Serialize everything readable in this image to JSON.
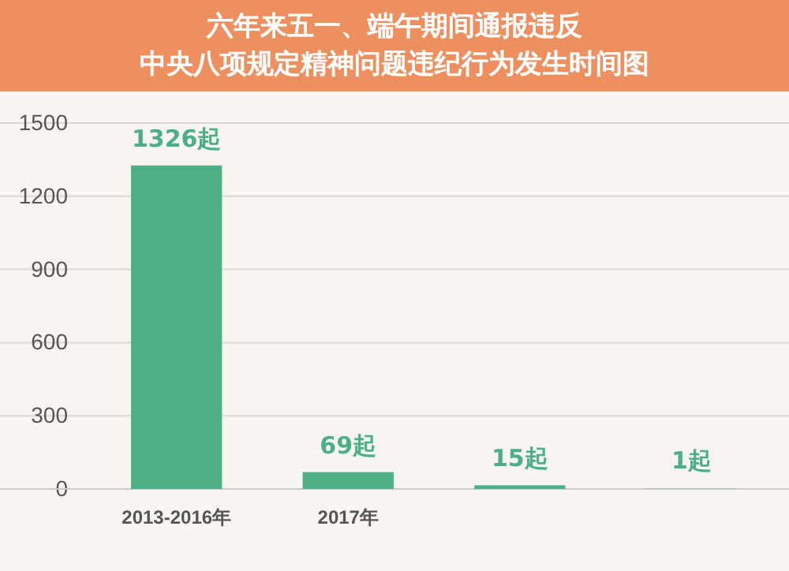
{
  "chart_data": {
    "type": "bar",
    "title": "六年来五一、端午期间通报违反",
    "subtitle": "中央八项规定精神问题违纪行为发生时间图",
    "categories": [
      "2013-2016年",
      "2017年",
      null,
      null
    ],
    "values": [
      1326,
      69,
      15,
      1
    ],
    "value_labels": [
      "1326起",
      "69起",
      "15起",
      "1起"
    ],
    "color": "#4caf86",
    "ylim": [
      0,
      1500
    ],
    "yticks": [
      0,
      300,
      600,
      900,
      1200,
      1500
    ],
    "grid": "y"
  }
}
